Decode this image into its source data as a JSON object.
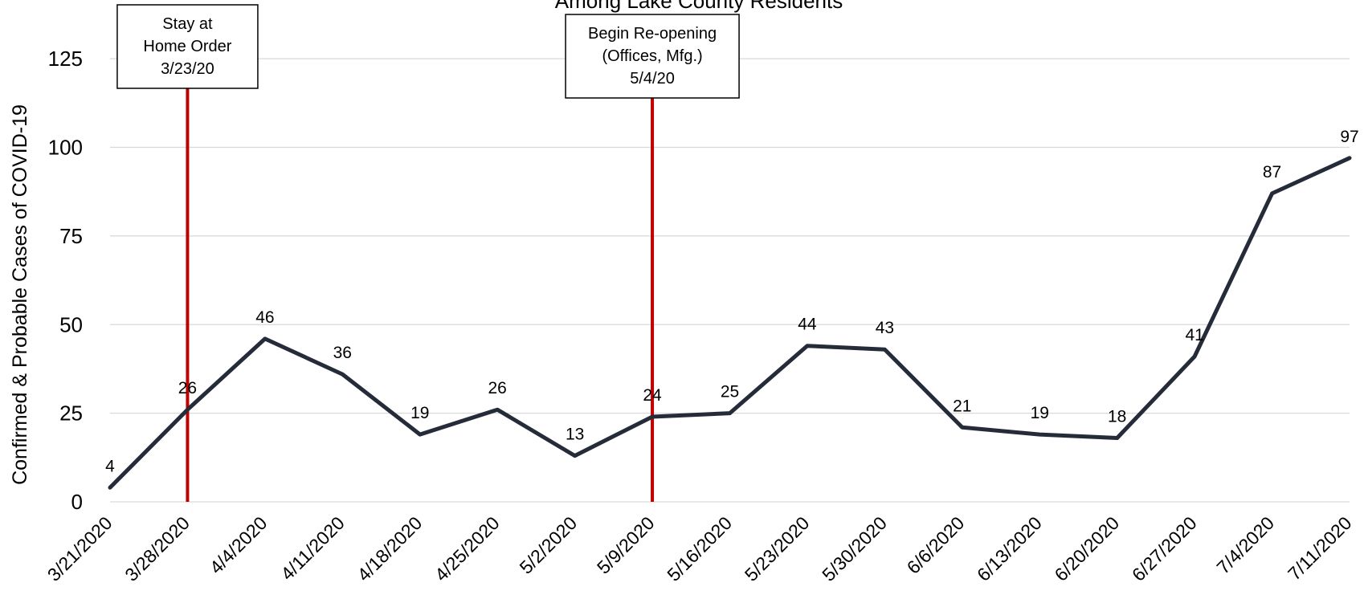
{
  "chart_data": {
    "type": "line",
    "title": "Among Lake County Residents",
    "ylabel": "Confirmed & Probable Cases of COVID-19",
    "xlabel": "",
    "ylim": [
      0,
      135
    ],
    "yticks": [
      0,
      25,
      50,
      75,
      100,
      125
    ],
    "grid": true,
    "categories": [
      "3/21/2020",
      "3/28/2020",
      "4/4/2020",
      "4/11/2020",
      "4/18/2020",
      "4/25/2020",
      "5/2/2020",
      "5/9/2020",
      "5/16/2020",
      "5/23/2020",
      "5/30/2020",
      "6/6/2020",
      "6/13/2020",
      "6/20/2020",
      "6/27/2020",
      "7/4/2020",
      "7/11/2020"
    ],
    "series": [
      {
        "values": [
          4,
          26,
          46,
          36,
          19,
          26,
          13,
          24,
          25,
          44,
          43,
          21,
          19,
          18,
          41,
          87,
          97
        ],
        "color": "#262b3a"
      }
    ],
    "annotations": [
      {
        "at_category": "3/28/2020",
        "lines": [
          "Stay at",
          "Home Order",
          "3/23/20"
        ],
        "color": "#c00000"
      },
      {
        "at_category": "5/9/2020",
        "lines": [
          "Begin Re-opening",
          "(Offices, Mfg.)",
          "5/4/20"
        ],
        "color": "#c00000"
      }
    ]
  }
}
